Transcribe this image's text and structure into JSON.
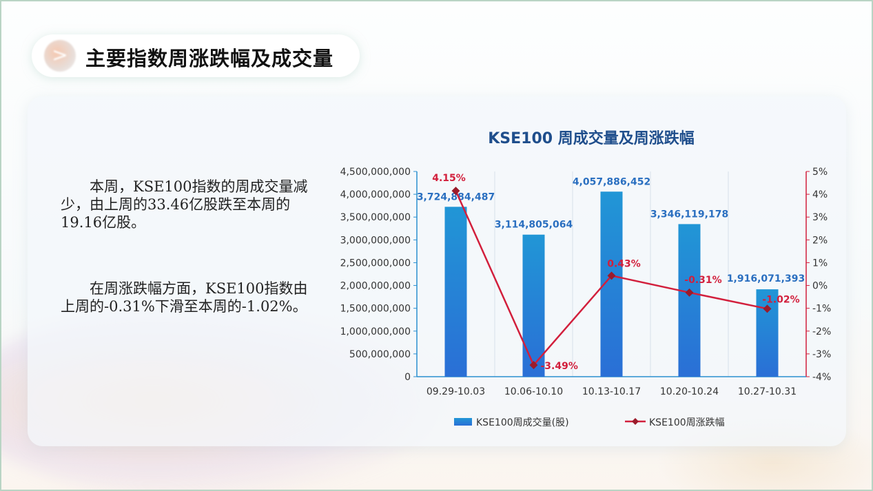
{
  "header": {
    "title": "主要指数周涨跌幅及成交量",
    "icon": "chevron-right-icon"
  },
  "text": {
    "p1": "本周，KSE100指数的周成交量减少，由上周的33.46亿股跌至本周的19.16亿股。",
    "p2": "在周涨跌幅方面，KSE100指数由上周的-0.31%下滑至本周的-1.02%。"
  },
  "colors": {
    "bar": "#2a7fd0",
    "line": "#d21f3c",
    "marker": "#9b1b2b"
  },
  "chart_data": {
    "type": "bar+line",
    "title": "KSE100 周成交量及周涨跌幅",
    "categories": [
      "09.29-10.03",
      "10.06-10.10",
      "10.13-10.17",
      "10.20-10.24",
      "10.27-10.31"
    ],
    "series": [
      {
        "name": "KSE100周成交量(股)",
        "type": "bar",
        "axis": "left",
        "values": [
          3724884487,
          3114805064,
          4057886452,
          3346119178,
          1916071393
        ],
        "labels": [
          "3,724,884,487",
          "3,114,805,064",
          "4,057,886,452",
          "3,346,119,178",
          "1,916,071,393"
        ]
      },
      {
        "name": "KSE100周涨跌幅",
        "type": "line",
        "axis": "right",
        "values": [
          4.15,
          -3.49,
          0.43,
          -0.31,
          -1.02
        ],
        "labels": [
          "4.15%",
          "-3.49%",
          "0.43%",
          "-0.31%",
          "-1.02%"
        ]
      }
    ],
    "left_axis": {
      "ylim": [
        0,
        4500000000
      ],
      "ticks": [
        "0",
        "500,000,000",
        "1,000,000,000",
        "1,500,000,000",
        "2,000,000,000",
        "2,500,000,000",
        "3,000,000,000",
        "3,500,000,000",
        "4,000,000,000",
        "4,500,000,000"
      ]
    },
    "right_axis": {
      "ylim": [
        -4,
        5
      ],
      "ticks": [
        "-4%",
        "-3%",
        "-2%",
        "-1%",
        "0%",
        "1%",
        "2%",
        "3%",
        "4%",
        "5%"
      ]
    },
    "legend": "bottom"
  }
}
